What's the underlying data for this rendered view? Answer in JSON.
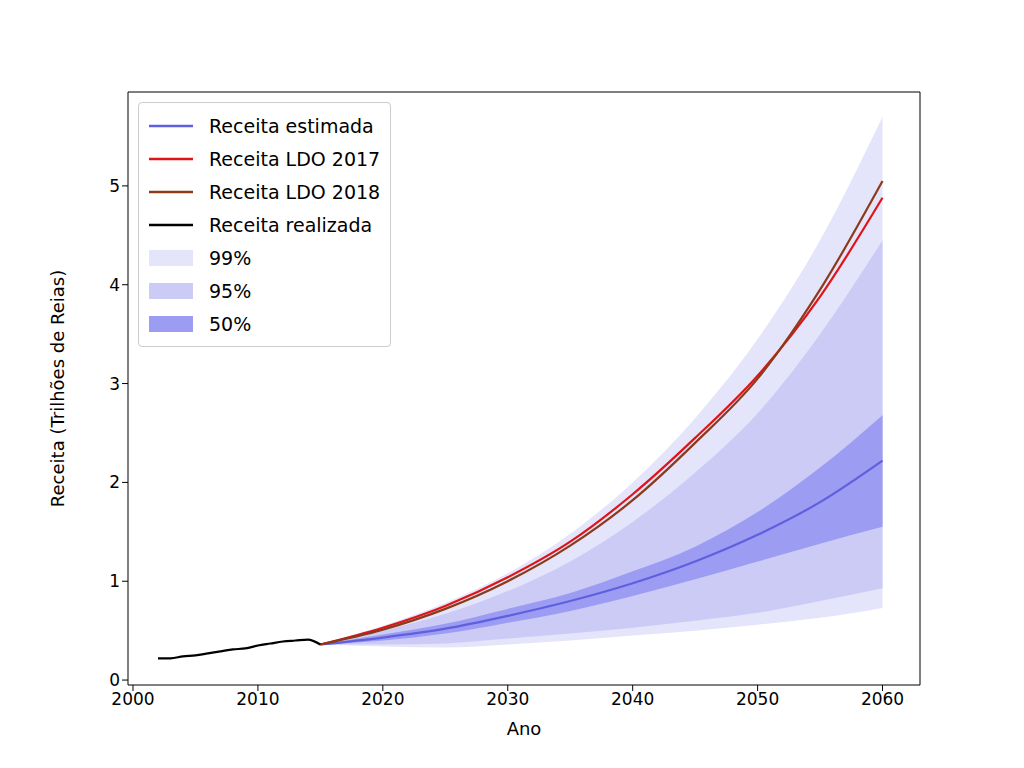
{
  "chart_data": {
    "type": "line",
    "x_label": "Ano",
    "y_label": "Receita (Trilhões de Reias)",
    "x": [
      2002,
      2003,
      2004,
      2005,
      2006,
      2007,
      2008,
      2009,
      2010,
      2011,
      2012,
      2013,
      2014,
      2015,
      2020,
      2025,
      2030,
      2035,
      2040,
      2045,
      2050,
      2055,
      2060
    ],
    "xlim": [
      1999.6,
      2063
    ],
    "xticks": [
      2000,
      2010,
      2020,
      2030,
      2040,
      2050,
      2060
    ],
    "ylim": [
      -0.05,
      5.95
    ],
    "yticks": [
      0,
      1,
      2,
      3,
      4,
      5
    ],
    "grid": false,
    "legend": "upper left",
    "series": [
      {
        "name": "Receita estimada",
        "color": "#5f5fe0",
        "values": [
          null,
          null,
          null,
          null,
          null,
          null,
          null,
          null,
          null,
          null,
          null,
          null,
          null,
          0.36,
          0.43,
          0.52,
          0.65,
          0.8,
          0.98,
          1.2,
          1.47,
          1.8,
          2.22
        ]
      },
      {
        "name": "Receita LDO 2017",
        "color": "#e01418",
        "values": [
          null,
          null,
          null,
          null,
          null,
          null,
          null,
          null,
          null,
          null,
          null,
          null,
          null,
          0.36,
          0.53,
          0.75,
          1.04,
          1.4,
          1.88,
          2.45,
          3.08,
          3.88,
          4.88
        ]
      },
      {
        "name": "Receita LDO 2018",
        "color": "#8b3a1a",
        "values": [
          null,
          null,
          null,
          null,
          null,
          null,
          null,
          null,
          null,
          null,
          null,
          null,
          null,
          0.36,
          0.51,
          0.72,
          1.0,
          1.36,
          1.82,
          2.4,
          3.05,
          3.95,
          5.05
        ]
      },
      {
        "name": "Receita realizada",
        "color": "#000000",
        "values": [
          0.22,
          0.22,
          0.24,
          0.25,
          0.27,
          0.29,
          0.31,
          0.32,
          0.35,
          0.37,
          0.39,
          0.4,
          0.41,
          0.36,
          null,
          null,
          null,
          null,
          null,
          null,
          null,
          null,
          null
        ]
      },
      {
        "name": "99%",
        "type": "band",
        "color": "#e4e4fa",
        "low": [
          null,
          null,
          null,
          null,
          null,
          null,
          null,
          null,
          null,
          null,
          null,
          null,
          null,
          0.36,
          0.34,
          0.33,
          0.36,
          0.4,
          0.45,
          0.5,
          0.56,
          0.63,
          0.73
        ],
        "high": [
          null,
          null,
          null,
          null,
          null,
          null,
          null,
          null,
          null,
          null,
          null,
          null,
          null,
          0.36,
          0.55,
          0.78,
          1.08,
          1.48,
          2.0,
          2.65,
          3.45,
          4.45,
          5.7
        ]
      },
      {
        "name": "95%",
        "type": "band",
        "color": "#cbcbf6",
        "low": [
          null,
          null,
          null,
          null,
          null,
          null,
          null,
          null,
          null,
          null,
          null,
          null,
          null,
          0.36,
          0.36,
          0.37,
          0.42,
          0.47,
          0.53,
          0.6,
          0.68,
          0.8,
          0.93
        ],
        "high": [
          null,
          null,
          null,
          null,
          null,
          null,
          null,
          null,
          null,
          null,
          null,
          null,
          null,
          0.36,
          0.5,
          0.67,
          0.9,
          1.2,
          1.6,
          2.1,
          2.7,
          3.5,
          4.45
        ]
      },
      {
        "name": "50%",
        "type": "band",
        "color": "#9c9cf2",
        "low": [
          null,
          null,
          null,
          null,
          null,
          null,
          null,
          null,
          null,
          null,
          null,
          null,
          null,
          0.36,
          0.4,
          0.47,
          0.58,
          0.7,
          0.85,
          1.02,
          1.2,
          1.38,
          1.55
        ],
        "high": [
          null,
          null,
          null,
          null,
          null,
          null,
          null,
          null,
          null,
          null,
          null,
          null,
          null,
          0.36,
          0.46,
          0.57,
          0.72,
          0.88,
          1.1,
          1.35,
          1.7,
          2.15,
          2.68
        ]
      }
    ]
  }
}
